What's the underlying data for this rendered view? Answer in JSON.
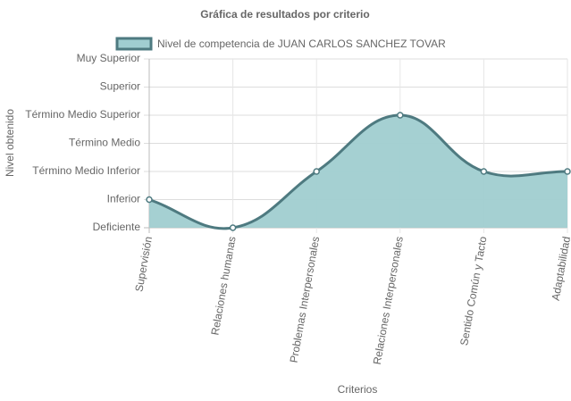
{
  "chart_data": {
    "type": "line",
    "title": "Gráfica de resultados por criterio",
    "xlabel": "Criterios",
    "ylabel": "Nivel obtenido",
    "categories": [
      "Supervisión",
      "Relaciones humanas",
      "Problemas Interpersonales",
      "Relaciones Interpersonales",
      "Sentido Común y Tacto",
      "Adaptabilidad"
    ],
    "series": [
      {
        "name": "Nivel de competencia de JUAN CARLOS SANCHEZ TOVAR",
        "color": "#4e7a80",
        "fill": "#a0cdd0",
        "values": [
          1,
          0,
          2,
          4,
          2,
          2
        ]
      }
    ],
    "ylim": [
      0,
      6
    ],
    "yticks": [
      {
        "value": 0,
        "label": "Deficiente"
      },
      {
        "value": 1,
        "label": "Inferior"
      },
      {
        "value": 2,
        "label": "Término Medio Inferior"
      },
      {
        "value": 3,
        "label": "Término Medio"
      },
      {
        "value": 4,
        "label": "Término Medio Superior"
      },
      {
        "value": 5,
        "label": "Superior"
      },
      {
        "value": 6,
        "label": "Muy Superior"
      }
    ],
    "grid": true
  }
}
